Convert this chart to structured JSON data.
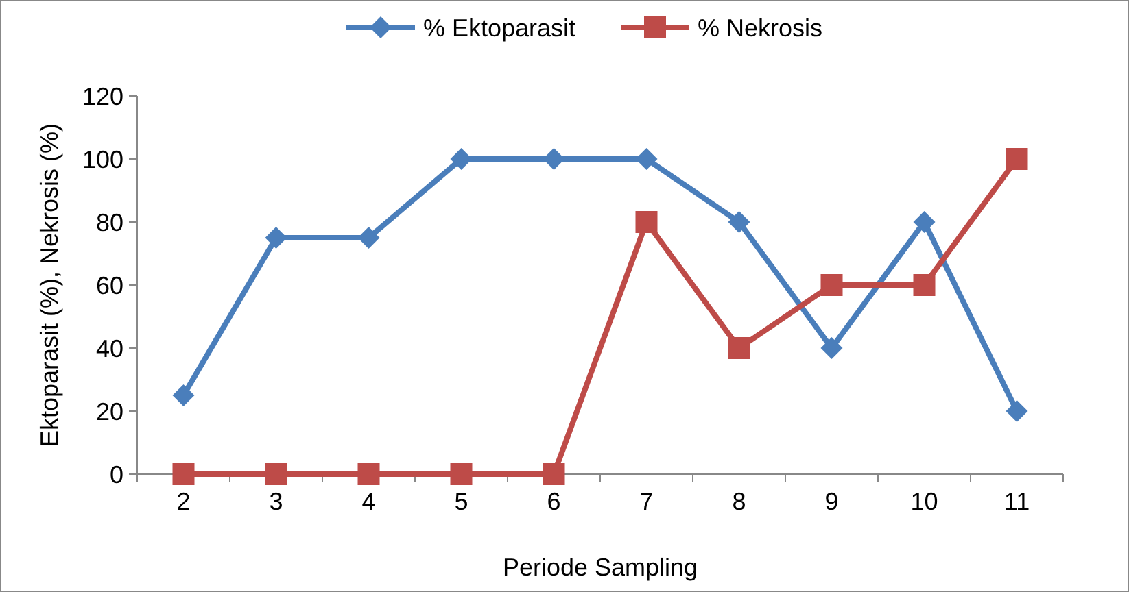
{
  "chart_data": {
    "type": "line",
    "xlabel": "Periode Sampling",
    "ylabel": "Ektoparasit (%),  Nekrosis (%)",
    "categories": [
      "2",
      "3",
      "4",
      "5",
      "6",
      "7",
      "8",
      "9",
      "10",
      "11"
    ],
    "series": [
      {
        "name": "% Ektoparasit",
        "color": "#4a7ebb",
        "marker": "diamond",
        "values": [
          25,
          75,
          75,
          100,
          100,
          100,
          80,
          40,
          80,
          20
        ]
      },
      {
        "name": "% Nekrosis",
        "color": "#be4b48",
        "marker": "square",
        "values": [
          0,
          0,
          0,
          0,
          0,
          80,
          40,
          60,
          60,
          100
        ]
      }
    ],
    "ylim": [
      0,
      120
    ],
    "yticks": [
      0,
      20,
      40,
      60,
      80,
      100,
      120
    ],
    "grid": false,
    "legend": "top",
    "line_style": "solid"
  }
}
